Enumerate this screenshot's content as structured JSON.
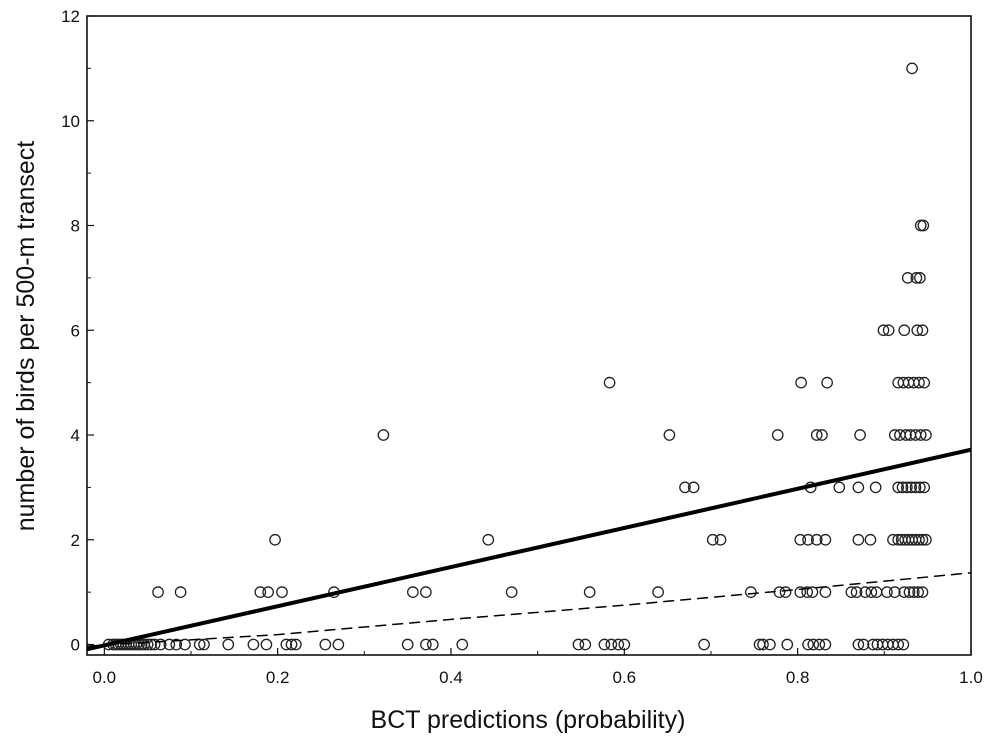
{
  "chart_data": {
    "type": "scatter",
    "title": "",
    "xlabel": "BCT predictions (probability)",
    "ylabel": "number of birds per 500-m transect",
    "xlim": [
      -0.02,
      1.0
    ],
    "ylim": [
      -0.2,
      12
    ],
    "xticks": [
      0.0,
      0.2,
      0.4,
      0.6,
      0.8,
      1.0
    ],
    "xtick_labels": [
      "0.0",
      "0.2",
      "0.4",
      "0.6",
      "0.8",
      "1.0"
    ],
    "yticks": [
      0,
      2,
      4,
      6,
      8,
      10,
      12
    ],
    "ytick_labels": [
      "0",
      "2",
      "4",
      "6",
      "8",
      "10",
      "12"
    ],
    "grid": false,
    "legend": "none",
    "series": [
      {
        "marker": "open-circle",
        "points": [
          [
            0.005,
            0
          ],
          [
            0.01,
            0
          ],
          [
            0.013,
            0
          ],
          [
            0.016,
            0
          ],
          [
            0.019,
            0
          ],
          [
            0.022,
            0
          ],
          [
            0.025,
            0
          ],
          [
            0.028,
            0
          ],
          [
            0.031,
            0
          ],
          [
            0.034,
            0
          ],
          [
            0.037,
            0
          ],
          [
            0.04,
            0
          ],
          [
            0.043,
            0
          ],
          [
            0.046,
            0
          ],
          [
            0.05,
            0
          ],
          [
            0.054,
            0
          ],
          [
            0.058,
            0
          ],
          [
            0.065,
            0
          ],
          [
            0.075,
            0
          ],
          [
            0.083,
            0
          ],
          [
            0.093,
            0
          ],
          [
            0.11,
            0
          ],
          [
            0.115,
            0
          ],
          [
            0.143,
            0
          ],
          [
            0.172,
            0
          ],
          [
            0.187,
            0
          ],
          [
            0.21,
            0
          ],
          [
            0.216,
            0
          ],
          [
            0.221,
            0
          ],
          [
            0.255,
            0
          ],
          [
            0.27,
            0
          ],
          [
            0.35,
            0
          ],
          [
            0.371,
            0
          ],
          [
            0.379,
            0
          ],
          [
            0.413,
            0
          ],
          [
            0.547,
            0
          ],
          [
            0.555,
            0
          ],
          [
            0.577,
            0
          ],
          [
            0.585,
            0
          ],
          [
            0.593,
            0
          ],
          [
            0.6,
            0
          ],
          [
            0.692,
            0
          ],
          [
            0.756,
            0
          ],
          [
            0.76,
            0
          ],
          [
            0.768,
            0
          ],
          [
            0.788,
            0
          ],
          [
            0.812,
            0
          ],
          [
            0.818,
            0
          ],
          [
            0.825,
            0
          ],
          [
            0.832,
            0
          ],
          [
            0.87,
            0
          ],
          [
            0.876,
            0
          ],
          [
            0.887,
            0
          ],
          [
            0.892,
            0
          ],
          [
            0.898,
            0
          ],
          [
            0.904,
            0
          ],
          [
            0.91,
            0
          ],
          [
            0.916,
            0
          ],
          [
            0.922,
            0
          ],
          [
            0.062,
            1
          ],
          [
            0.088,
            1
          ],
          [
            0.18,
            1
          ],
          [
            0.189,
            1
          ],
          [
            0.205,
            1
          ],
          [
            0.265,
            1
          ],
          [
            0.356,
            1
          ],
          [
            0.371,
            1
          ],
          [
            0.47,
            1
          ],
          [
            0.56,
            1
          ],
          [
            0.639,
            1
          ],
          [
            0.746,
            1
          ],
          [
            0.779,
            1
          ],
          [
            0.786,
            1
          ],
          [
            0.803,
            1
          ],
          [
            0.811,
            1
          ],
          [
            0.817,
            1
          ],
          [
            0.832,
            1
          ],
          [
            0.862,
            1
          ],
          [
            0.868,
            1
          ],
          [
            0.878,
            1
          ],
          [
            0.885,
            1
          ],
          [
            0.891,
            1
          ],
          [
            0.903,
            1
          ],
          [
            0.912,
            1
          ],
          [
            0.923,
            1
          ],
          [
            0.929,
            1
          ],
          [
            0.934,
            1
          ],
          [
            0.939,
            1
          ],
          [
            0.944,
            1
          ],
          [
            0.197,
            2
          ],
          [
            0.443,
            2
          ],
          [
            0.702,
            2
          ],
          [
            0.711,
            2
          ],
          [
            0.803,
            2
          ],
          [
            0.812,
            2
          ],
          [
            0.822,
            2
          ],
          [
            0.832,
            2
          ],
          [
            0.87,
            2
          ],
          [
            0.884,
            2
          ],
          [
            0.91,
            2
          ],
          [
            0.916,
            2
          ],
          [
            0.92,
            2
          ],
          [
            0.924,
            2
          ],
          [
            0.928,
            2
          ],
          [
            0.932,
            2
          ],
          [
            0.936,
            2
          ],
          [
            0.94,
            2
          ],
          [
            0.944,
            2
          ],
          [
            0.948,
            2
          ],
          [
            0.67,
            3
          ],
          [
            0.68,
            3
          ],
          [
            0.815,
            3
          ],
          [
            0.848,
            3
          ],
          [
            0.87,
            3
          ],
          [
            0.89,
            3
          ],
          [
            0.916,
            3
          ],
          [
            0.921,
            3
          ],
          [
            0.926,
            3
          ],
          [
            0.931,
            3
          ],
          [
            0.936,
            3
          ],
          [
            0.941,
            3
          ],
          [
            0.946,
            3
          ],
          [
            0.322,
            4
          ],
          [
            0.652,
            4
          ],
          [
            0.777,
            4
          ],
          [
            0.822,
            4
          ],
          [
            0.828,
            4
          ],
          [
            0.872,
            4
          ],
          [
            0.912,
            4
          ],
          [
            0.918,
            4
          ],
          [
            0.925,
            4
          ],
          [
            0.93,
            4
          ],
          [
            0.936,
            4
          ],
          [
            0.942,
            4
          ],
          [
            0.948,
            4
          ],
          [
            0.583,
            5
          ],
          [
            0.804,
            5
          ],
          [
            0.834,
            5
          ],
          [
            0.916,
            5
          ],
          [
            0.922,
            5
          ],
          [
            0.928,
            5
          ],
          [
            0.934,
            5
          ],
          [
            0.94,
            5
          ],
          [
            0.946,
            5
          ],
          [
            0.899,
            6
          ],
          [
            0.905,
            6
          ],
          [
            0.923,
            6
          ],
          [
            0.938,
            6
          ],
          [
            0.944,
            6
          ],
          [
            0.927,
            7
          ],
          [
            0.937,
            7
          ],
          [
            0.941,
            7
          ],
          [
            0.942,
            8
          ],
          [
            0.945,
            8
          ],
          [
            0.932,
            11
          ]
        ]
      },
      {
        "style": "solid-thick",
        "x": [
          -0.02,
          1.0
        ],
        "y": [
          -0.09,
          3.72
        ]
      },
      {
        "style": "dashed",
        "x": [
          -0.02,
          0.2,
          0.4,
          0.6,
          0.8,
          1.0
        ],
        "y": [
          -0.03,
          0.19,
          0.48,
          0.75,
          1.05,
          1.37
        ]
      }
    ]
  }
}
